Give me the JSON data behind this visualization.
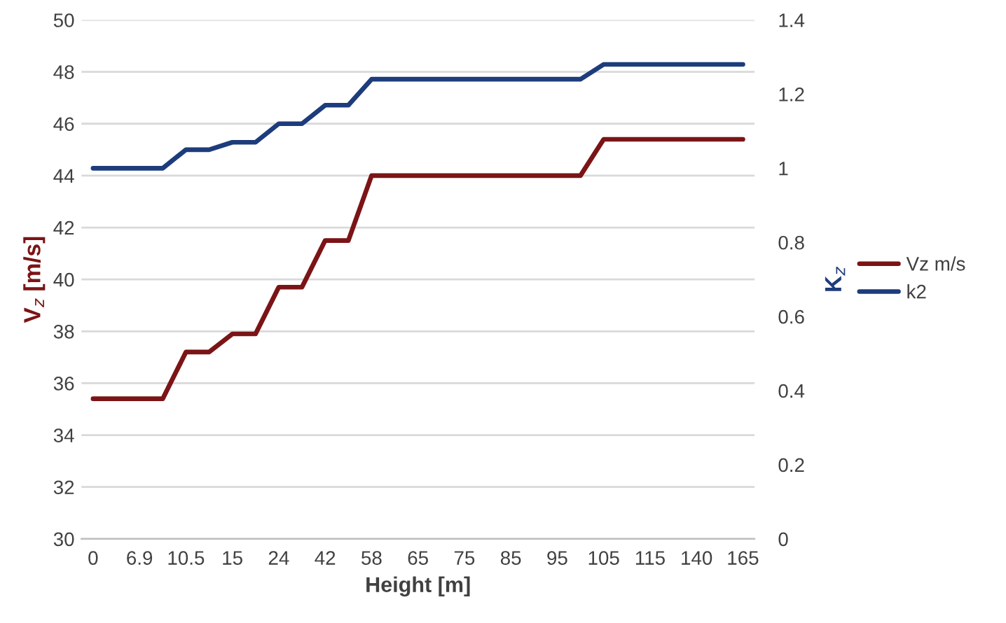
{
  "chart_data": {
    "type": "line",
    "categories": [
      "0",
      null,
      "6.9",
      null,
      "10.5",
      null,
      "15",
      null,
      "24",
      null,
      "42",
      null,
      "58",
      null,
      "65",
      null,
      "75",
      null,
      "85",
      null,
      "95",
      null,
      "105",
      null,
      "115",
      null,
      "140",
      null,
      "165"
    ],
    "xlabel": "Height [m]",
    "ylabel": "V$_{z}$ [m/s]",
    "y2label": "K$_{z}$",
    "ylim": [
      30,
      50
    ],
    "yticks": [
      30,
      32,
      34,
      36,
      38,
      40,
      42,
      44,
      46,
      48,
      50
    ],
    "y2lim": [
      0,
      1.4
    ],
    "y2ticks": [
      0,
      0.2,
      0.4,
      0.6,
      0.8,
      1,
      1.2,
      1.4
    ],
    "grid": "y",
    "legend": "right",
    "marker": "none",
    "line_style": "solid",
    "series": [
      {
        "name": "Vz m/s",
        "color": "#7b1416",
        "values": [
          35.4,
          35.4,
          35.4,
          35.4,
          37.2,
          37.2,
          37.9,
          37.9,
          39.7,
          39.7,
          41.5,
          41.5,
          44.0,
          44.0,
          44.0,
          44.0,
          44.0,
          44.0,
          44.0,
          44.0,
          44.0,
          44.0,
          45.4,
          45.4,
          45.4,
          45.4,
          45.4,
          45.4,
          45.4
        ]
      },
      {
        "name": "k2",
        "color": "#1d3c7c",
        "axis": "y2",
        "values": [
          1.0,
          1.0,
          1.0,
          1.0,
          1.05,
          1.05,
          1.07,
          1.07,
          1.12,
          1.12,
          1.17,
          1.17,
          1.24,
          1.24,
          1.24,
          1.24,
          1.24,
          1.24,
          1.24,
          1.24,
          1.24,
          1.24,
          1.28,
          1.28,
          1.28,
          1.28,
          1.28,
          1.28,
          1.28
        ]
      }
    ]
  }
}
